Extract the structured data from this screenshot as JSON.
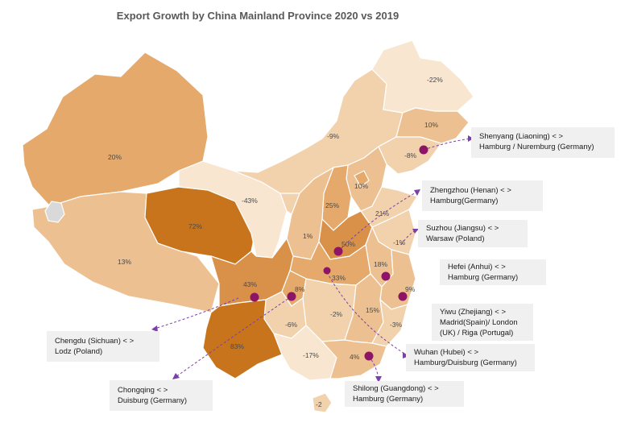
{
  "title": "Export Growth by China Mainland Province  2020 vs 2019",
  "colors": {
    "very_light": "#f9e6d1",
    "light": "#f2d2ad",
    "light_medium": "#ecc090",
    "medium": "#e4a96b",
    "high": "#d9914a",
    "very_high": "#c8741c",
    "disputed_grey": "#d9d9d9",
    "hub_dot": "#8e1466",
    "route_line": "#7a3fa8",
    "callout_bg": "#f0f0f0"
  },
  "province_labels": {
    "xinjiang": "20%",
    "tibet": "13%",
    "qinghai": "72%",
    "yunnan": "83%",
    "sichuan": "43%",
    "chongqing": "8%",
    "gansu": "-43%",
    "inner_mongolia": "-9%",
    "heilongjiang": "-22%",
    "jilin": "10%",
    "liaoning": "-8%",
    "beijing": "10%",
    "shanxi": "25%",
    "shandong": "21%",
    "ningxia": "1%",
    "henan": "50%",
    "jiangsu": "-1%",
    "anhui": "18%",
    "hubei": "33%",
    "zhejiang": "9%",
    "hunan": "-2%",
    "jiangxi": "15%",
    "fujian": "-3%",
    "guizhou": "-6%",
    "guangxi": "-17%",
    "guangdong": "4%",
    "hainan": "-2"
  },
  "callouts": {
    "shenyang": {
      "line1": "Shenyang  (Liaoning)  < >",
      "line2": "Hamburg  / Nuremburg  (Germany)"
    },
    "zhengzhou": {
      "line1": "Zhengzhou  (Henan)  < >",
      "line2": "Hamburg(Germany)"
    },
    "suzhou": {
      "line1": "Suzhou  (Jiangsu)  < >",
      "line2": "Warsaw  (Poland)"
    },
    "hefei": {
      "line1": "Hefei  (Anhui)  < >",
      "line2": "Hamburg  (Germany)"
    },
    "yiwu": {
      "line1": "Yiwu  (Zhejiang)  < >",
      "line2": "Madrid(Spain)/   London",
      "line3": "(UK)  / Riga  (Portugal)"
    },
    "wuhan": {
      "line1": "Wuhan  (Hubei)  < >",
      "line2": "Hamburg/Duisburg  (Germany)"
    },
    "shilong": {
      "line1": "Shilong  (Guangdong)  < >",
      "line2": "Hamburg  (Germany)"
    },
    "chengdu": {
      "line1": "Chengdu  (Sichuan)  < >",
      "line2": "Lodz  (Poland)"
    },
    "chongqing": {
      "line1": "Chongqing  < >",
      "line2": "Duisburg  (Germany)"
    }
  }
}
